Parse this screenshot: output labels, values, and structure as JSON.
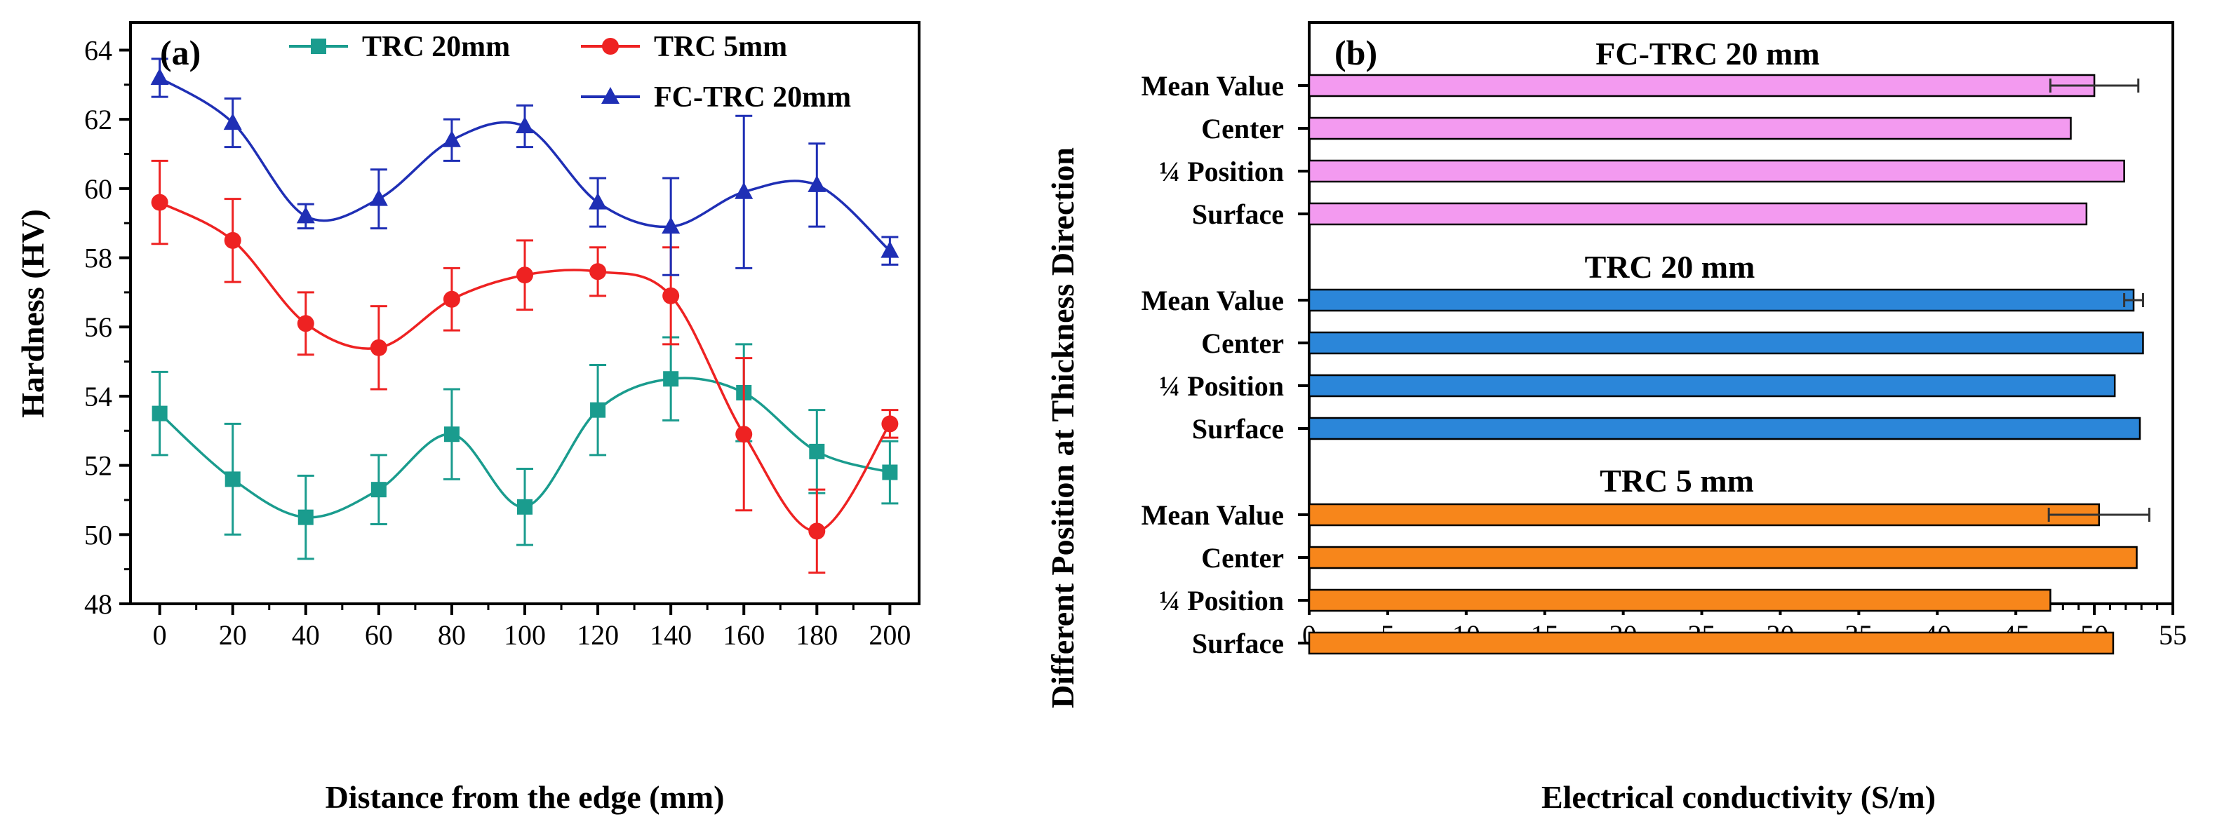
{
  "chart_data": [
    {
      "type": "line",
      "panel_label": "(a)",
      "xlabel": "Distance from the edge (mm)",
      "ylabel": "Hardness (HV)",
      "xlim": [
        -8,
        208
      ],
      "ylim": [
        48,
        64.8
      ],
      "x": [
        0,
        20,
        40,
        60,
        80,
        100,
        120,
        140,
        160,
        180,
        200
      ],
      "x_ticks": [
        "0",
        "20",
        "40",
        "60",
        "80",
        "100",
        "120",
        "140",
        "160",
        "180",
        "200"
      ],
      "y_ticks": [
        "48",
        "50",
        "52",
        "54",
        "56",
        "58",
        "60",
        "62",
        "64"
      ],
      "series": [
        {
          "name": "TRC 20mm",
          "color": "#1a9c8e",
          "marker": "square",
          "values": [
            53.5,
            51.6,
            50.5,
            51.3,
            52.9,
            50.8,
            53.6,
            54.5,
            54.1,
            52.4,
            51.8
          ],
          "errors": [
            1.2,
            1.6,
            1.2,
            1.0,
            1.3,
            1.1,
            1.3,
            1.2,
            1.4,
            1.2,
            0.9
          ]
        },
        {
          "name": "TRC 5mm",
          "color": "#ee2222",
          "marker": "circle",
          "values": [
            59.6,
            58.5,
            56.1,
            55.4,
            56.8,
            57.5,
            57.6,
            56.9,
            52.9,
            50.1,
            53.2
          ],
          "errors": [
            1.2,
            1.2,
            0.9,
            1.2,
            0.9,
            1.0,
            0.7,
            1.4,
            2.2,
            1.2,
            0.4
          ]
        },
        {
          "name": "FC-TRC 20mm",
          "color": "#1f2fb5",
          "marker": "triangle",
          "values": [
            63.2,
            61.9,
            59.2,
            59.7,
            61.4,
            61.8,
            59.6,
            58.9,
            59.9,
            60.1,
            58.2
          ],
          "errors": [
            0.55,
            0.7,
            0.35,
            0.85,
            0.6,
            0.6,
            0.7,
            1.4,
            2.2,
            1.2,
            0.4
          ]
        }
      ]
    },
    {
      "type": "bar",
      "orientation": "horizontal",
      "panel_label": "(b)",
      "xlabel": "Electrical conductivity (S/m)",
      "ylabel": "Different Position at Thickness Direction",
      "xlim": [
        0,
        55
      ],
      "x_ticks": [
        "0",
        "5",
        "10",
        "15",
        "20",
        "25",
        "30",
        "35",
        "40",
        "45",
        "50",
        "55"
      ],
      "categories": [
        "Mean Value",
        "Center",
        "¼ Position",
        "Surface"
      ],
      "groups": [
        {
          "name": "FC-TRC 20 mm",
          "color": "#f39af0",
          "values": [
            50.0,
            48.5,
            51.9,
            49.5
          ],
          "mean_error": 2.8
        },
        {
          "name": "TRC 20 mm",
          "color": "#2b86d9",
          "values": [
            52.5,
            53.1,
            51.3,
            52.9
          ],
          "mean_error": 0.6
        },
        {
          "name": "TRC 5 mm",
          "color": "#f7861b",
          "values": [
            50.3,
            52.7,
            47.2,
            51.2
          ],
          "mean_error": 3.2
        }
      ]
    }
  ]
}
